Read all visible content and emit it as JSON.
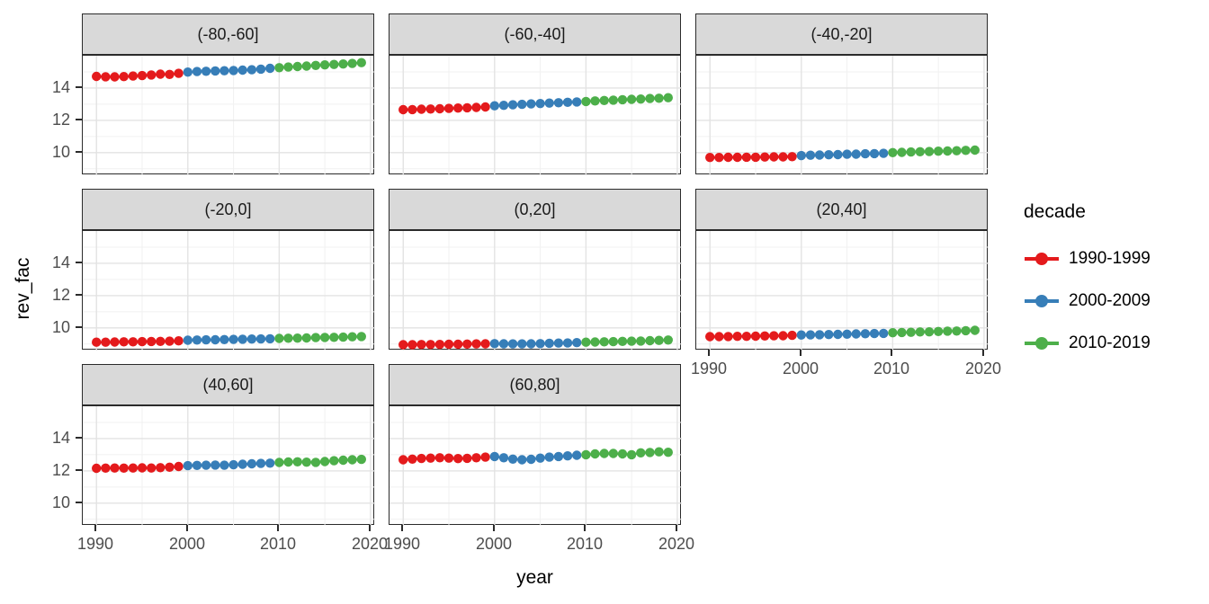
{
  "chart_data": {
    "type": "scatter",
    "title": "",
    "xlabel": "year",
    "ylabel": "rev_fac",
    "grid": true,
    "legend": {
      "title": "decade",
      "position": "right",
      "entries": [
        {
          "label": "1990-1999",
          "color": "#E41A1C"
        },
        {
          "label": "2000-2009",
          "color": "#377EB8"
        },
        {
          "label": "2010-2019",
          "color": "#4DAF4A"
        }
      ]
    },
    "x": [
      1990,
      1991,
      1992,
      1993,
      1994,
      1995,
      1996,
      1997,
      1998,
      1999,
      2000,
      2001,
      2002,
      2003,
      2004,
      2005,
      2006,
      2007,
      2008,
      2009,
      2010,
      2011,
      2012,
      2013,
      2014,
      2015,
      2016,
      2017,
      2018,
      2019
    ],
    "decades": [
      {
        "name": "1990-1999",
        "color": "#E41A1C",
        "start_year": 1990,
        "end_year": 1999
      },
      {
        "name": "2000-2009",
        "color": "#377EB8",
        "start_year": 2000,
        "end_year": 2009
      },
      {
        "name": "2010-2019",
        "color": "#4DAF4A",
        "start_year": 2010,
        "end_year": 2019
      }
    ],
    "xlim": [
      1988.5,
      2020.5
    ],
    "ylim": [
      8.6,
      16.0
    ],
    "x_ticks": {
      "values": [
        1990,
        2000,
        2010,
        2020
      ],
      "labels": [
        "1990",
        "2000",
        "2010",
        "2020"
      ]
    },
    "y_ticks": {
      "values": [
        14,
        12,
        10
      ],
      "labels": [
        "14",
        "12",
        "10"
      ]
    },
    "x_minor": [
      1995,
      2005,
      2015
    ],
    "y_minor": [
      15,
      13,
      11,
      9
    ],
    "facets": [
      {
        "label": "(-80,-60]",
        "values": [
          14.72,
          14.7,
          14.69,
          14.71,
          14.74,
          14.77,
          14.81,
          14.86,
          14.84,
          14.91,
          14.99,
          15.02,
          15.04,
          15.06,
          15.07,
          15.09,
          15.11,
          15.13,
          15.17,
          15.22,
          15.26,
          15.3,
          15.33,
          15.36,
          15.4,
          15.43,
          15.46,
          15.49,
          15.52,
          15.57
        ]
      },
      {
        "label": "(-60,-40]",
        "values": [
          12.66,
          12.67,
          12.69,
          12.7,
          12.72,
          12.74,
          12.76,
          12.78,
          12.8,
          12.83,
          12.9,
          12.93,
          12.96,
          12.99,
          13.02,
          13.04,
          13.07,
          13.09,
          13.12,
          13.14,
          13.17,
          13.2,
          13.23,
          13.25,
          13.28,
          13.3,
          13.32,
          13.35,
          13.37,
          13.4
        ]
      },
      {
        "label": "(-40,-20]",
        "values": [
          9.7,
          9.7,
          9.71,
          9.71,
          9.72,
          9.72,
          9.73,
          9.74,
          9.74,
          9.75,
          9.82,
          9.84,
          9.85,
          9.87,
          9.88,
          9.9,
          9.91,
          9.93,
          9.94,
          9.96,
          10.0,
          10.02,
          10.04,
          10.06,
          10.07,
          10.09,
          10.1,
          10.12,
          10.14,
          10.16
        ]
      },
      {
        "label": "(-20,0]",
        "values": [
          9.12,
          9.12,
          9.13,
          9.14,
          9.14,
          9.15,
          9.16,
          9.17,
          9.18,
          9.2,
          9.24,
          9.25,
          9.26,
          9.27,
          9.28,
          9.29,
          9.3,
          9.31,
          9.32,
          9.33,
          9.35,
          9.36,
          9.37,
          9.38,
          9.4,
          9.41,
          9.42,
          9.43,
          9.45,
          9.47
        ]
      },
      {
        "label": "(0,20]",
        "values": [
          8.96,
          8.96,
          8.97,
          8.97,
          8.98,
          8.99,
          8.99,
          9.0,
          9.01,
          9.02,
          9.03,
          9.02,
          9.01,
          9.01,
          9.02,
          9.03,
          9.05,
          9.06,
          9.07,
          9.09,
          9.12,
          9.13,
          9.14,
          9.15,
          9.17,
          9.18,
          9.19,
          9.21,
          9.23,
          9.25
        ]
      },
      {
        "label": "(20,40]",
        "values": [
          9.46,
          9.46,
          9.47,
          9.48,
          9.48,
          9.49,
          9.5,
          9.51,
          9.52,
          9.54,
          9.56,
          9.57,
          9.58,
          9.59,
          9.6,
          9.61,
          9.63,
          9.64,
          9.65,
          9.66,
          9.7,
          9.72,
          9.73,
          9.75,
          9.76,
          9.78,
          9.8,
          9.81,
          9.83,
          9.85
        ]
      },
      {
        "label": "(40,60]",
        "values": [
          12.16,
          12.17,
          12.18,
          12.17,
          12.18,
          12.19,
          12.18,
          12.2,
          12.23,
          12.27,
          12.32,
          12.34,
          12.35,
          12.36,
          12.35,
          12.38,
          12.41,
          12.44,
          12.46,
          12.48,
          12.52,
          12.55,
          12.56,
          12.54,
          12.53,
          12.58,
          12.63,
          12.66,
          12.69,
          12.71
        ]
      },
      {
        "label": "(60,80]",
        "values": [
          12.69,
          12.73,
          12.77,
          12.79,
          12.81,
          12.79,
          12.76,
          12.78,
          12.81,
          12.85,
          12.89,
          12.81,
          12.73,
          12.69,
          12.72,
          12.79,
          12.85,
          12.89,
          12.93,
          12.97,
          13.0,
          13.05,
          13.08,
          13.08,
          13.05,
          13.0,
          13.12,
          13.14,
          13.18,
          13.15
        ]
      }
    ]
  },
  "styles": {
    "strip_fill": "#d9d9d9",
    "panel_border": "#2b2b2b",
    "grid_major": "#e3e3e3",
    "grid_minor": "#f1f1f1",
    "tick_label_color": "#4d4d4d",
    "red": "#E41A1C",
    "blue": "#377EB8",
    "green": "#4DAF4A"
  }
}
